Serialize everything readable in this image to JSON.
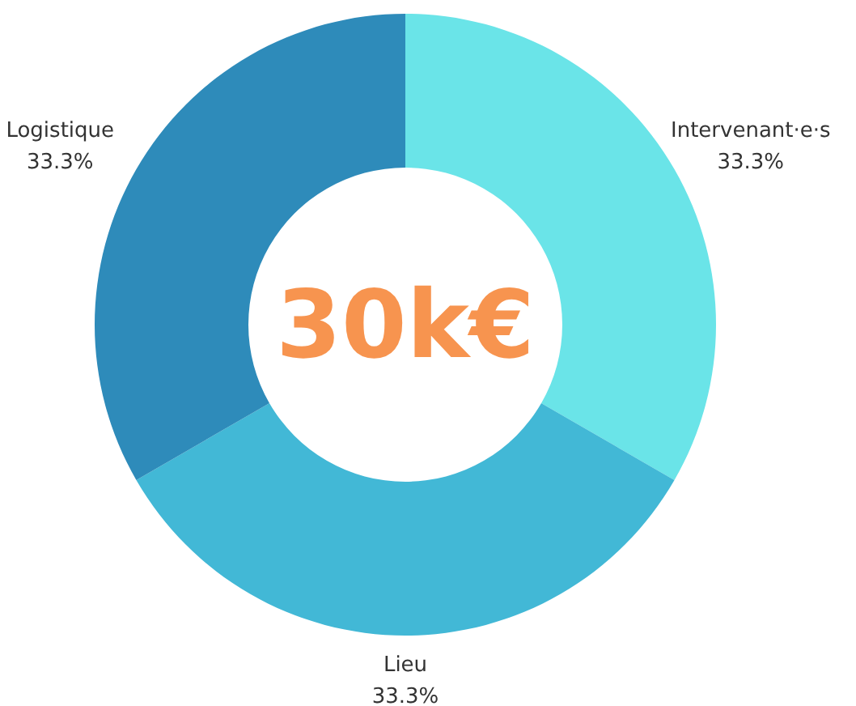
{
  "chart_data": {
    "type": "donut",
    "categories": [
      "Intervenant·e·s",
      "Lieu",
      "Logistique"
    ],
    "values": [
      33.3,
      33.3,
      33.3
    ],
    "colors": [
      "#6ae4e8",
      "#42b8d6",
      "#2e8bba"
    ],
    "value_labels": [
      "33.3%",
      "33.3%",
      "33.3%"
    ],
    "annotations": [
      "30k€"
    ]
  }
}
